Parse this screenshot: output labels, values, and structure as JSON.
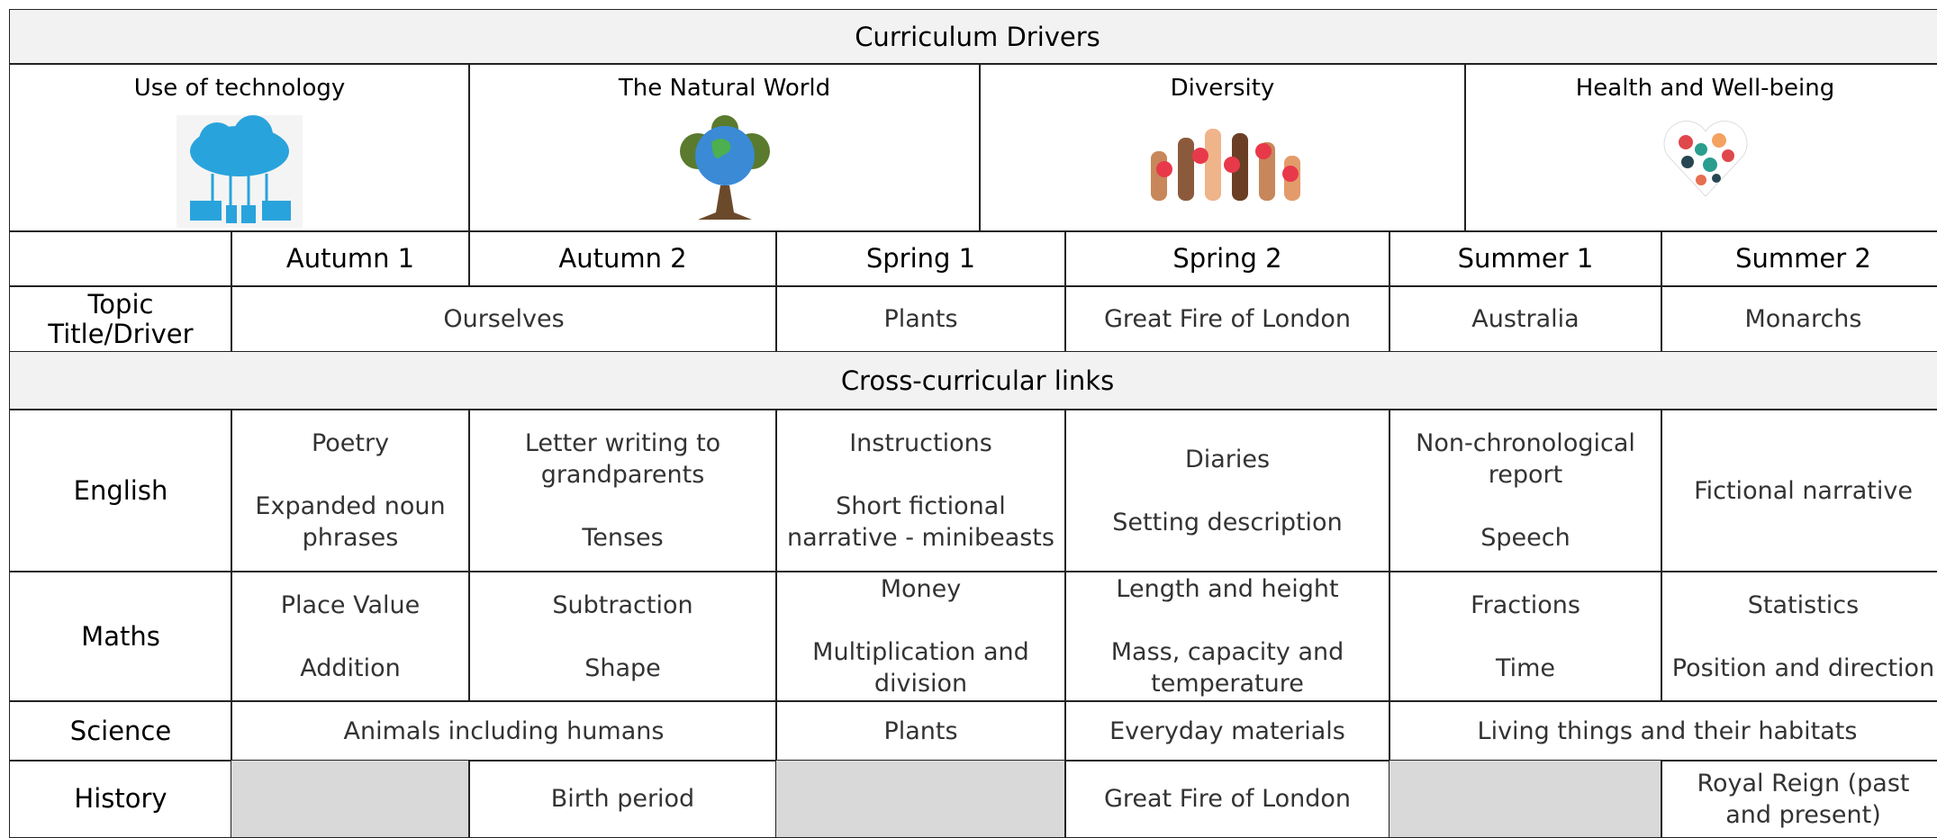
{
  "title": "Curriculum Drivers",
  "drivers": [
    "Use of technology",
    "The Natural World",
    "Diversity",
    "Health and Well-being"
  ],
  "terms": [
    "Autumn 1",
    "Autumn 2",
    "Spring 1",
    "Spring 2",
    "Summer 1",
    "Summer 2"
  ],
  "topic": {
    "label": "Topic Title/Driver",
    "cells": [
      [
        "Ourselves"
      ],
      [
        "Plants"
      ],
      [
        "Great Fire of London"
      ],
      [
        "Australia"
      ],
      [
        "Monarchs"
      ]
    ]
  },
  "links_title": "Cross-curricular links",
  "rows": [
    {
      "label": "English",
      "cells": [
        [
          "Poetry",
          "Expanded noun phrases"
        ],
        [
          "Letter writing to grandparents",
          "Tenses"
        ],
        [
          "Instructions",
          "Short fictional narrative - minibeasts"
        ],
        [
          "Diaries",
          "Setting description"
        ],
        [
          "Non-chronological report",
          "Speech"
        ],
        [
          "Fictional narrative"
        ]
      ]
    },
    {
      "label": "Maths",
      "cells": [
        [
          "Place Value",
          "Addition"
        ],
        [
          "Subtraction",
          "Shape"
        ],
        [
          "Money",
          "Multiplication and division"
        ],
        [
          "Length and height",
          "Mass, capacity and temperature"
        ],
        [
          "Fractions",
          "Time"
        ],
        [
          "Statistics",
          "Position and direction"
        ]
      ]
    },
    {
      "label": "Science",
      "cells": [
        [
          "Animals including humans"
        ],
        [
          "Plants"
        ],
        [
          "Everyday materials"
        ],
        [
          "Living things and their habitats"
        ]
      ]
    },
    {
      "label": "History",
      "cells": [
        null,
        [
          "Birth period"
        ],
        null,
        [
          "Great Fire of London"
        ],
        null,
        [
          "Royal Reign (past and present)"
        ]
      ]
    }
  ]
}
